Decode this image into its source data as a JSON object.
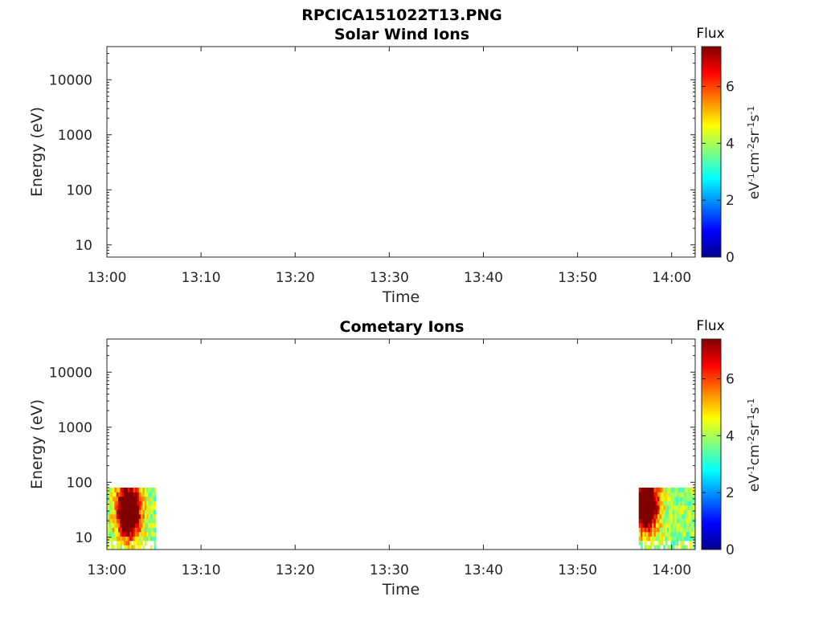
{
  "figure_title": "RPCICA151022T13.PNG",
  "chart_data": [
    {
      "type": "heatmap",
      "title": "Solar Wind Ions",
      "xlabel": "Time",
      "ylabel": "Energy (eV)",
      "x_ticks": [
        "13:00",
        "13:10",
        "13:20",
        "13:30",
        "13:40",
        "13:50",
        "14:00"
      ],
      "xlim_minutes": [
        0,
        62.5
      ],
      "y_scale": "log",
      "y_ticks": [
        10,
        100,
        1000,
        10000
      ],
      "y_tick_labels": [
        "10",
        "100",
        "1000",
        "10000"
      ],
      "ylim": [
        6,
        40000
      ],
      "colorbar": {
        "title": "Flux",
        "label": "eV-1cm-2sr-1s-1",
        "ticks": [
          "0",
          "2",
          "4",
          "6"
        ],
        "range": [
          0,
          7.4
        ],
        "colormap": "jet"
      },
      "data": []
    },
    {
      "type": "heatmap",
      "title": "Cometary Ions",
      "xlabel": "Time",
      "ylabel": "Energy (eV)",
      "x_ticks": [
        "13:00",
        "13:10",
        "13:20",
        "13:30",
        "13:40",
        "13:50",
        "14:00"
      ],
      "xlim_minutes": [
        0,
        62.5
      ],
      "y_scale": "log",
      "y_ticks": [
        10,
        100,
        1000,
        10000
      ],
      "y_tick_labels": [
        "10",
        "100",
        "1000",
        "10000"
      ],
      "ylim": [
        6,
        40000
      ],
      "colorbar": {
        "title": "Flux",
        "label": "eV-1cm-2sr-1s-1",
        "ticks": [
          "0",
          "2",
          "4",
          "6"
        ],
        "range": [
          0,
          7.4
        ],
        "colormap": "jet"
      },
      "data": [
        {
          "t_start_min": 0,
          "t_end_min": 5.2,
          "e_min": 6,
          "e_max": 80,
          "peak_flux": 7.0,
          "peak_t_min": 2.3,
          "peak_e": 30
        },
        {
          "t_start_min": 56.5,
          "t_end_min": 62.5,
          "e_min": 6,
          "e_max": 80,
          "peak_flux": 7.0,
          "peak_t_min": 57.3,
          "peak_e": 40
        }
      ]
    }
  ]
}
